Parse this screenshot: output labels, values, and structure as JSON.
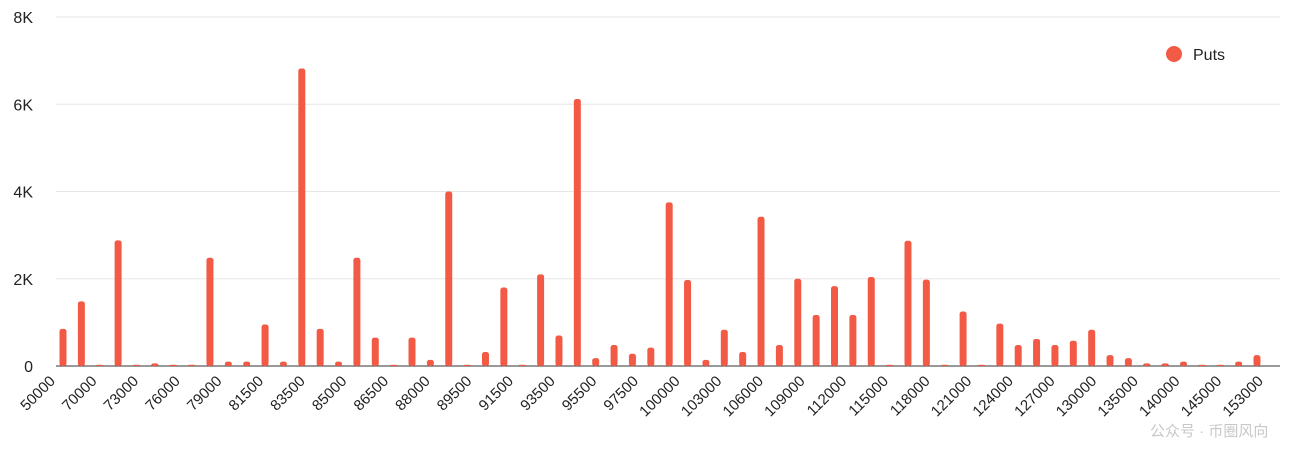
{
  "chart_data": {
    "type": "bar",
    "title": "",
    "xlabel": "",
    "ylabel": "",
    "ylim": [
      0,
      8000
    ],
    "y_ticks": [
      {
        "value": 0,
        "label": "0"
      },
      {
        "value": 2000,
        "label": "2K"
      },
      {
        "value": 4000,
        "label": "4K"
      },
      {
        "value": 6000,
        "label": "6K"
      },
      {
        "value": 8000,
        "label": "8K"
      }
    ],
    "grid": true,
    "legend_position": "top-right",
    "colors": {
      "puts": "#f25a45",
      "grid": "#e6e6e6",
      "axis": "#333333"
    },
    "series": [
      {
        "name": "Puts",
        "values": [
          850,
          1480,
          30,
          2880,
          30,
          60,
          30,
          30,
          2480,
          100,
          100,
          950,
          100,
          6820,
          850,
          100,
          2480,
          650,
          30,
          650,
          140,
          4000,
          30,
          320,
          1800,
          30,
          2100,
          700,
          6120,
          180,
          480,
          280,
          420,
          3750,
          1970,
          140,
          830,
          320,
          3420,
          480,
          2000,
          1170,
          1830,
          1170,
          2040,
          30,
          2870,
          1980,
          30,
          1250,
          30,
          970,
          480,
          620,
          480,
          580,
          830,
          250,
          180,
          60,
          60,
          100,
          30,
          30,
          100,
          250
        ]
      }
    ],
    "x_tick_labels": [
      "50000",
      "70000",
      "73000",
      "76000",
      "79000",
      "81500",
      "83500",
      "85000",
      "86500",
      "88000",
      "89500",
      "91500",
      "93500",
      "95500",
      "97500",
      "100000",
      "103000",
      "106000",
      "109000",
      "112000",
      "115000",
      "118000",
      "121000",
      "124000",
      "127000",
      "130000",
      "135000",
      "140000",
      "145000",
      "153000"
    ]
  },
  "watermark": "公众号 · 币圈风向"
}
